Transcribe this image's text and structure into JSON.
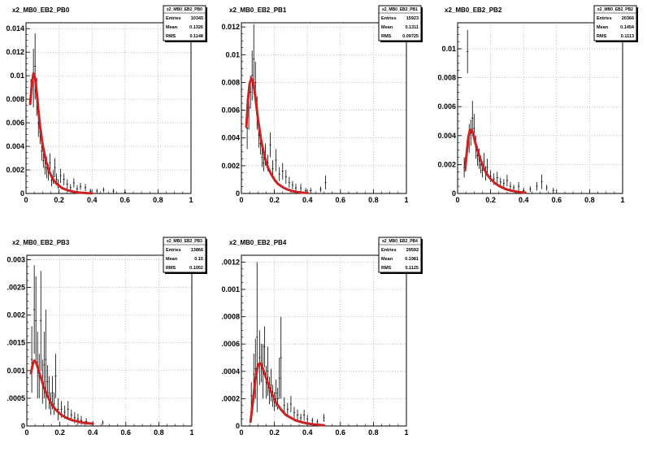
{
  "chart_data": [
    {
      "type": "scatter",
      "title": "x2_MB0_EB2_PB0",
      "xlim": [
        0,
        1
      ],
      "ylim": [
        0,
        0.0145
      ],
      "xticks": [
        0,
        0.2,
        0.4,
        0.6,
        0.8,
        1
      ],
      "xtick_labels": [
        "0",
        "0.2",
        "0.4",
        "0.6",
        "0.8",
        "1"
      ],
      "yticks": [
        0,
        0.002,
        0.004,
        0.006,
        0.008,
        0.01,
        0.012,
        0.014
      ],
      "ytick_labels": [
        "0",
        "0.002",
        "0.004",
        "0.006",
        "0.008",
        "0.01",
        "0.012",
        "0.014"
      ],
      "grid": true,
      "stats": {
        "name": "x2_MB0_EB2_PB0",
        "rows": [
          [
            "Entries",
            "10345"
          ],
          [
            "Mean",
            "0.1326"
          ],
          [
            "RMS",
            "0.1148"
          ]
        ]
      },
      "points": [
        [
          0.03,
          0.0088,
          0.0009
        ],
        [
          0.045,
          0.0098,
          0.0025
        ],
        [
          0.055,
          0.0108,
          0.0028
        ],
        [
          0.065,
          0.0082,
          0.0016
        ],
        [
          0.075,
          0.006,
          0.0012
        ],
        [
          0.085,
          0.0052,
          0.001
        ],
        [
          0.095,
          0.0036,
          0.0008
        ],
        [
          0.105,
          0.0028,
          0.0006
        ],
        [
          0.115,
          0.0022,
          0.0006
        ],
        [
          0.125,
          0.0022,
          0.0009
        ],
        [
          0.135,
          0.0018,
          0.0007
        ],
        [
          0.145,
          0.0026,
          0.0008
        ],
        [
          0.155,
          0.0011,
          0.0005
        ],
        [
          0.165,
          0.0014,
          0.0006
        ],
        [
          0.175,
          0.0022,
          0.0008
        ],
        [
          0.185,
          0.0012,
          0.0005
        ],
        [
          0.195,
          0.0008,
          0.0004
        ],
        [
          0.21,
          0.0015,
          0.0006
        ],
        [
          0.23,
          0.0012,
          0.0005
        ],
        [
          0.25,
          0.0008,
          0.0004
        ],
        [
          0.27,
          0.0005,
          0.0003
        ],
        [
          0.29,
          0.0009,
          0.0004
        ],
        [
          0.31,
          0.0004,
          0.0003
        ],
        [
          0.33,
          0.0006,
          0.0003
        ],
        [
          0.36,
          0.0005,
          0.0003
        ],
        [
          0.39,
          0.0002,
          0.0002
        ],
        [
          0.43,
          0.0002,
          0.0002
        ],
        [
          0.47,
          0.0003,
          0.0002
        ],
        [
          0.53,
          0.0002,
          0.0002
        ],
        [
          0.6,
          0.0001,
          0.0001
        ]
      ],
      "fit": {
        "x": [
          0.025,
          0.035,
          0.045,
          0.055,
          0.065,
          0.075,
          0.085,
          0.1,
          0.12,
          0.14,
          0.16,
          0.18,
          0.2,
          0.22,
          0.25,
          0.28,
          0.31,
          0.34,
          0.37,
          0.4
        ],
        "y": [
          0.0076,
          0.0092,
          0.0102,
          0.0098,
          0.0086,
          0.0071,
          0.0057,
          0.0042,
          0.0028,
          0.0019,
          0.0013,
          0.0009,
          0.00065,
          0.00045,
          0.00028,
          0.00017,
          0.0001,
          6e-05,
          3e-05,
          2e-05
        ]
      }
    },
    {
      "type": "scatter",
      "title": "x2_MB0_EB2_PB1",
      "xlim": [
        0,
        1
      ],
      "ylim": [
        0,
        0.0123
      ],
      "xticks": [
        0,
        0.2,
        0.4,
        0.6,
        0.8,
        1
      ],
      "xtick_labels": [
        "0",
        "0.2",
        "0.4",
        "0.6",
        "0.8",
        "1"
      ],
      "yticks": [
        0,
        0.002,
        0.004,
        0.006,
        0.008,
        0.01,
        0.012
      ],
      "ytick_labels": [
        "0",
        "0.002",
        "0.004",
        "0.006",
        "0.008",
        "0.01",
        "0.012"
      ],
      "grid": true,
      "stats": {
        "name": "x2_MB0_EB2_PB1",
        "rows": [
          [
            "Entries",
            "15923"
          ],
          [
            "Mean",
            "0.1311"
          ],
          [
            "RMS",
            "0.09725"
          ]
        ]
      },
      "points": [
        [
          0.035,
          0.0047,
          0.0015
        ],
        [
          0.045,
          0.0062,
          0.0016
        ],
        [
          0.055,
          0.0073,
          0.0012
        ],
        [
          0.065,
          0.0085,
          0.0018
        ],
        [
          0.075,
          0.0097,
          0.0025
        ],
        [
          0.085,
          0.008,
          0.0015
        ],
        [
          0.095,
          0.0058,
          0.0012
        ],
        [
          0.105,
          0.0042,
          0.0009
        ],
        [
          0.115,
          0.0036,
          0.0008
        ],
        [
          0.125,
          0.0026,
          0.0007
        ],
        [
          0.135,
          0.0022,
          0.0006
        ],
        [
          0.145,
          0.0028,
          0.0008
        ],
        [
          0.16,
          0.0022,
          0.0006
        ],
        [
          0.175,
          0.0035,
          0.0009
        ],
        [
          0.19,
          0.0018,
          0.0006
        ],
        [
          0.21,
          0.0024,
          0.0008
        ],
        [
          0.23,
          0.0014,
          0.0005
        ],
        [
          0.25,
          0.0016,
          0.0006
        ],
        [
          0.27,
          0.0012,
          0.0005
        ],
        [
          0.29,
          0.0008,
          0.0004
        ],
        [
          0.31,
          0.0006,
          0.0003
        ],
        [
          0.33,
          0.0004,
          0.0003
        ],
        [
          0.36,
          0.0004,
          0.0003
        ],
        [
          0.39,
          0.0002,
          0.0002
        ],
        [
          0.42,
          0.0002,
          0.0002
        ],
        [
          0.48,
          0.0003,
          0.0002
        ],
        [
          0.51,
          0.0008,
          0.0005
        ]
      ],
      "fit": {
        "x": [
          0.03,
          0.04,
          0.05,
          0.06,
          0.07,
          0.08,
          0.09,
          0.1,
          0.12,
          0.14,
          0.16,
          0.18,
          0.2,
          0.22,
          0.25,
          0.28,
          0.31,
          0.34,
          0.37,
          0.4
        ],
        "y": [
          0.0048,
          0.0068,
          0.0079,
          0.0083,
          0.0081,
          0.0074,
          0.0064,
          0.0054,
          0.0038,
          0.0027,
          0.0019,
          0.0014,
          0.001,
          0.0007,
          0.00045,
          0.00028,
          0.00017,
          0.0001,
          6e-05,
          4e-05
        ]
      }
    },
    {
      "type": "scatter",
      "title": "x2_MB0_EB2_PB2",
      "xlim": [
        0,
        1
      ],
      "ylim": [
        0,
        0.0118
      ],
      "xticks": [
        0,
        0.2,
        0.4,
        0.6,
        0.8,
        1
      ],
      "xtick_labels": [
        "0",
        "0.2",
        "0.4",
        "0.6",
        "0.8",
        "1"
      ],
      "yticks": [
        0,
        0.002,
        0.004,
        0.006,
        0.008,
        0.01
      ],
      "ytick_labels": [
        "0",
        "0.002",
        "0.004",
        "0.006",
        "0.008",
        "0.01"
      ],
      "grid": true,
      "stats": {
        "name": "x2_MB0_EB2_PB2",
        "rows": [
          [
            "Entries",
            "20366"
          ],
          [
            "Mean",
            "0.1454"
          ],
          [
            "RMS",
            "0.1113"
          ]
        ]
      },
      "points": [
        [
          0.04,
          0.0018,
          0.0007
        ],
        [
          0.06,
          0.0098,
          0.0015
        ],
        [
          0.07,
          0.0038,
          0.001
        ],
        [
          0.08,
          0.0042,
          0.0009
        ],
        [
          0.09,
          0.0052,
          0.0012
        ],
        [
          0.1,
          0.0045,
          0.001
        ],
        [
          0.11,
          0.0032,
          0.0008
        ],
        [
          0.12,
          0.0026,
          0.0007
        ],
        [
          0.13,
          0.0024,
          0.0007
        ],
        [
          0.14,
          0.002,
          0.0006
        ],
        [
          0.15,
          0.0016,
          0.0005
        ],
        [
          0.16,
          0.0022,
          0.0006
        ],
        [
          0.17,
          0.0014,
          0.0005
        ],
        [
          0.18,
          0.0018,
          0.0006
        ],
        [
          0.2,
          0.0012,
          0.0004
        ],
        [
          0.22,
          0.001,
          0.0004
        ],
        [
          0.24,
          0.0011,
          0.0004
        ],
        [
          0.26,
          0.0008,
          0.0003
        ],
        [
          0.28,
          0.0007,
          0.0003
        ],
        [
          0.3,
          0.0009,
          0.0004
        ],
        [
          0.32,
          0.0005,
          0.0003
        ],
        [
          0.34,
          0.0004,
          0.0002
        ],
        [
          0.37,
          0.0005,
          0.0003
        ],
        [
          0.4,
          0.0002,
          0.0002
        ],
        [
          0.44,
          0.0003,
          0.0002
        ],
        [
          0.48,
          0.0005,
          0.0003
        ],
        [
          0.51,
          0.0008,
          0.0005
        ],
        [
          0.54,
          0.0004,
          0.0002
        ],
        [
          0.58,
          0.0002,
          0.0002
        ]
      ],
      "fit": {
        "x": [
          0.045,
          0.055,
          0.065,
          0.075,
          0.085,
          0.095,
          0.105,
          0.12,
          0.14,
          0.16,
          0.18,
          0.2,
          0.23,
          0.26,
          0.29,
          0.32,
          0.35,
          0.38,
          0.41
        ],
        "y": [
          0.0016,
          0.0028,
          0.0039,
          0.0044,
          0.0044,
          0.0041,
          0.0036,
          0.003,
          0.0023,
          0.0017,
          0.0013,
          0.001,
          0.00068,
          0.00046,
          0.00031,
          0.00021,
          0.00014,
          9e-05,
          6e-05
        ]
      }
    },
    {
      "type": "scatter",
      "title": "x2_MB0_EB2_PB3",
      "xlim": [
        0,
        1
      ],
      "ylim": [
        0,
        0.00308
      ],
      "xticks": [
        0,
        0.2,
        0.4,
        0.6,
        0.8,
        1
      ],
      "xtick_labels": [
        "0",
        "0.2",
        "0.4",
        "0.6",
        "0.8",
        "1"
      ],
      "yticks": [
        0,
        0.0005,
        0.001,
        0.0015,
        0.002,
        0.0025,
        0.003
      ],
      "ytick_labels": [
        "0",
        ".0005",
        "0.001",
        ".0015",
        "0.002",
        ".0025",
        "0.003"
      ],
      "grid": true,
      "stats": {
        "name": "x2_MB0_EB2_PB3",
        "rows": [
          [
            "Entries",
            "13866"
          ],
          [
            "Mean",
            "0.15"
          ],
          [
            "RMS",
            "0.1052"
          ]
        ]
      },
      "points": [
        [
          0.03,
          0.0012,
          0.0006
        ],
        [
          0.045,
          0.0021,
          0.0008
        ],
        [
          0.055,
          0.0019,
          0.0008
        ],
        [
          0.065,
          0.0011,
          0.0006
        ],
        [
          0.075,
          0.0009,
          0.0004
        ],
        [
          0.085,
          0.0019,
          0.0009
        ],
        [
          0.095,
          0.0008,
          0.0004
        ],
        [
          0.105,
          0.0011,
          0.0006
        ],
        [
          0.115,
          0.0012,
          0.0009
        ],
        [
          0.125,
          0.0008,
          0.0003
        ],
        [
          0.135,
          0.0006,
          0.0003
        ],
        [
          0.145,
          0.0004,
          0.0002
        ],
        [
          0.155,
          0.0006,
          0.0003
        ],
        [
          0.165,
          0.0004,
          0.0002
        ],
        [
          0.175,
          0.0009,
          0.0004
        ],
        [
          0.19,
          0.0003,
          0.0002
        ],
        [
          0.21,
          0.0003,
          0.00015
        ],
        [
          0.23,
          0.00025,
          0.00012
        ],
        [
          0.25,
          0.0003,
          0.00015
        ],
        [
          0.27,
          0.0002,
          0.0001
        ],
        [
          0.29,
          0.00015,
          0.0001
        ],
        [
          0.31,
          0.00012,
          0.0001
        ],
        [
          0.33,
          0.0001,
          8e-05
        ],
        [
          0.36,
          8e-05,
          6e-05
        ],
        [
          0.4,
          5e-05,
          4e-05
        ],
        [
          0.46,
          6e-05,
          4e-05
        ]
      ],
      "fit": {
        "x": [
          0.025,
          0.035,
          0.045,
          0.055,
          0.065,
          0.08,
          0.1,
          0.12,
          0.14,
          0.16,
          0.18,
          0.2,
          0.22,
          0.25,
          0.28,
          0.31,
          0.34,
          0.37,
          0.4
        ],
        "y": [
          0.00095,
          0.0011,
          0.00118,
          0.00115,
          0.00107,
          0.00092,
          0.00073,
          0.00057,
          0.00045,
          0.00035,
          0.00028,
          0.00022,
          0.00018,
          0.00013,
          0.0001,
          8e-05,
          6e-05,
          5e-05,
          4e-05
        ]
      }
    },
    {
      "type": "scatter",
      "title": "x2_MB0_EB2_PB4",
      "xlim": [
        0,
        1
      ],
      "ylim": [
        0,
        0.00125
      ],
      "xticks": [
        0,
        0.2,
        0.4,
        0.6,
        0.8,
        1
      ],
      "xtick_labels": [
        "0",
        "0.2",
        "0.4",
        "0.6",
        "0.8",
        "1"
      ],
      "yticks": [
        0,
        0.0002,
        0.0004,
        0.0006,
        0.0008,
        0.001,
        0.0012
      ],
      "ytick_labels": [
        "0",
        ".0002",
        ".0004",
        ".0006",
        ".0008",
        "0.001",
        ".0012"
      ],
      "grid": true,
      "stats": {
        "name": "x2_MB0_EB2_PB4",
        "rows": [
          [
            "Entries",
            "29592"
          ],
          [
            "Mean",
            "0.1981"
          ],
          [
            "RMS",
            "0.1125"
          ]
        ]
      },
      "points": [
        [
          0.06,
          0.00022,
          0.0001
        ],
        [
          0.075,
          0.00038,
          0.00015
        ],
        [
          0.085,
          0.00042,
          0.00022
        ],
        [
          0.095,
          0.00065,
          0.00055
        ],
        [
          0.11,
          0.0005,
          0.0002
        ],
        [
          0.12,
          0.00046,
          0.00014
        ],
        [
          0.13,
          0.0004,
          0.0002
        ],
        [
          0.14,
          0.00058,
          0.00015
        ],
        [
          0.15,
          0.00032,
          0.00012
        ],
        [
          0.16,
          0.0004,
          0.00018
        ],
        [
          0.17,
          0.00026,
          0.0001
        ],
        [
          0.18,
          0.0003,
          0.00012
        ],
        [
          0.19,
          0.00022,
          8e-05
        ],
        [
          0.2,
          0.00018,
          7e-05
        ],
        [
          0.21,
          0.00024,
          0.0001
        ],
        [
          0.22,
          0.0002,
          8e-05
        ],
        [
          0.23,
          0.00035,
          0.00015
        ],
        [
          0.24,
          0.0005,
          0.0003
        ],
        [
          0.26,
          0.00015,
          6e-05
        ],
        [
          0.28,
          0.00012,
          5e-05
        ],
        [
          0.3,
          0.00016,
          6e-05
        ],
        [
          0.32,
          0.0001,
          4e-05
        ],
        [
          0.34,
          8e-05,
          4e-05
        ],
        [
          0.36,
          6e-05,
          3e-05
        ],
        [
          0.38,
          8e-05,
          4e-05
        ],
        [
          0.4,
          5e-05,
          3e-05
        ],
        [
          0.43,
          4e-05,
          2e-05
        ],
        [
          0.46,
          3e-05,
          2e-05
        ],
        [
          0.5,
          6e-05,
          3e-05
        ]
      ],
      "fit": {
        "x": [
          0.055,
          0.07,
          0.085,
          0.1,
          0.11,
          0.12,
          0.13,
          0.15,
          0.17,
          0.19,
          0.21,
          0.24,
          0.27,
          0.3,
          0.33,
          0.36,
          0.39,
          0.42,
          0.45,
          0.48,
          0.5
        ],
        "y": [
          3e-05,
          0.00018,
          0.00035,
          0.00044,
          0.00046,
          0.00045,
          0.00042,
          0.00035,
          0.00028,
          0.00022,
          0.00017,
          0.00012,
          8e-05,
          6e-05,
          4e-05,
          3e-05,
          2e-05,
          1.5e-05,
          1e-05,
          7e-06,
          5e-06
        ]
      }
    }
  ]
}
